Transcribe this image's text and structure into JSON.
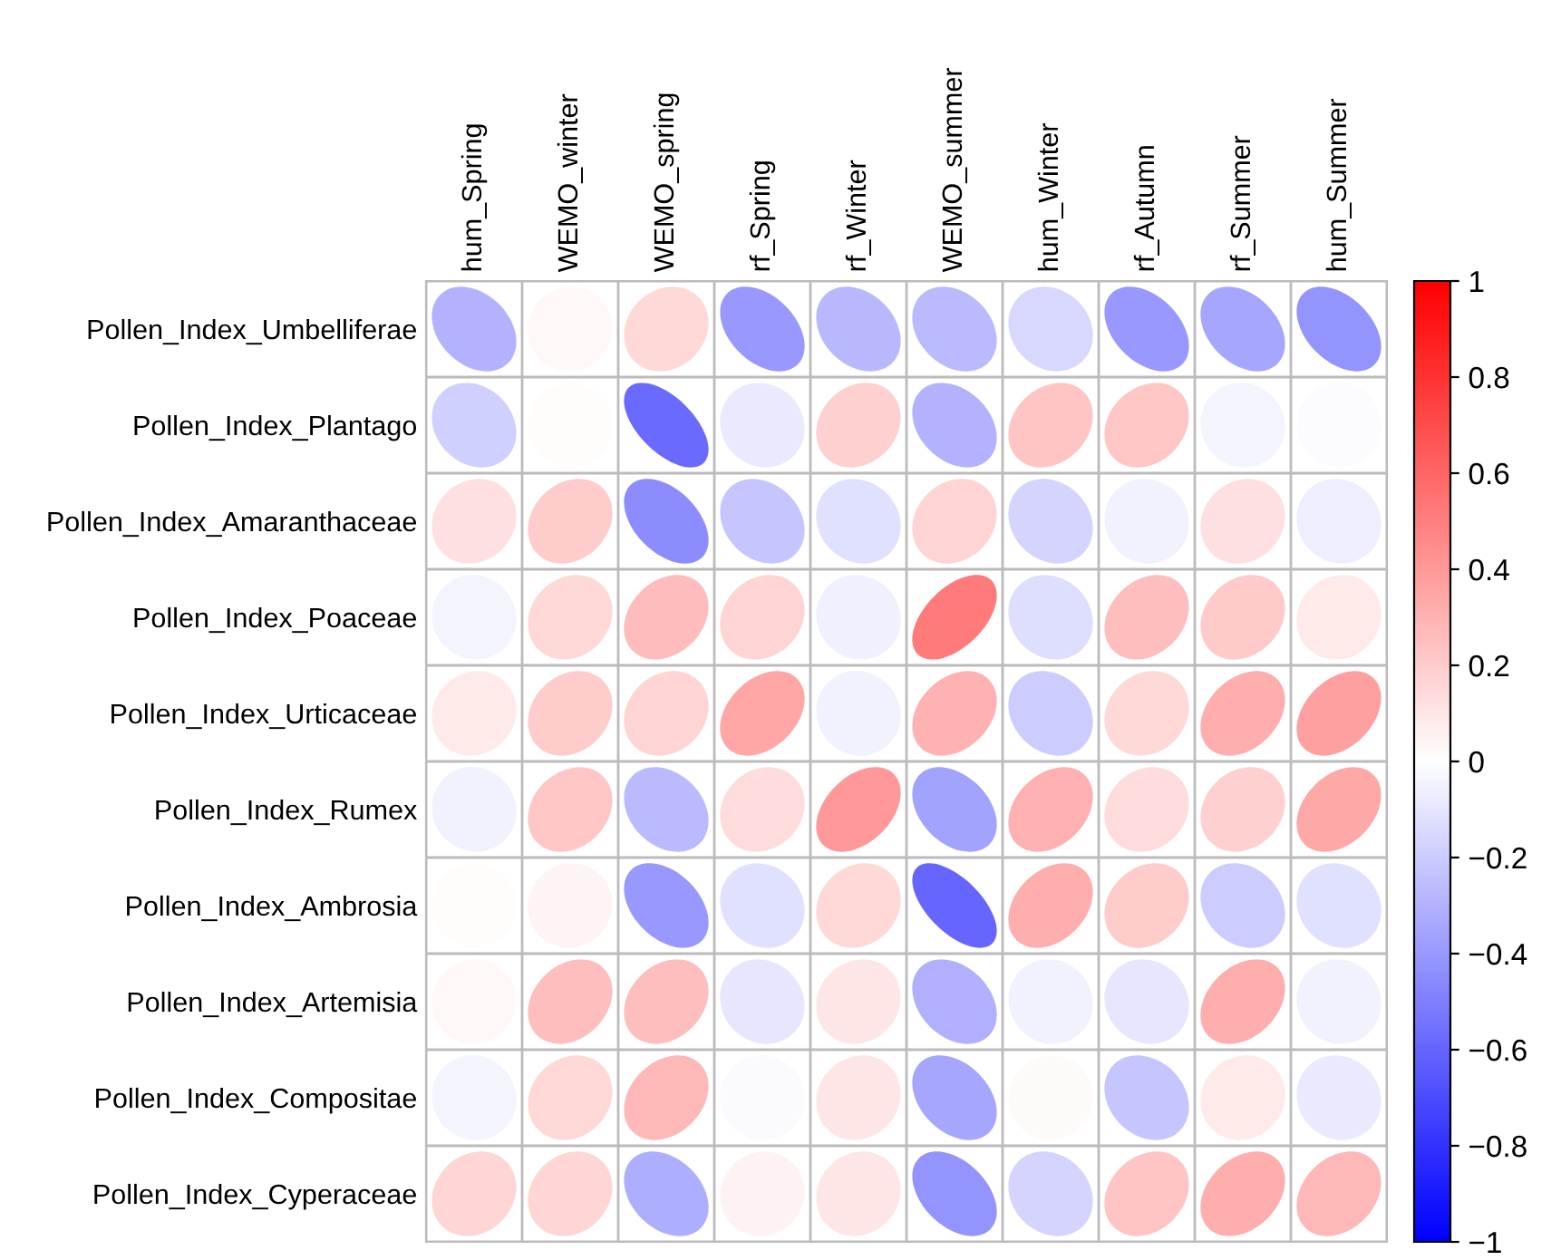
{
  "chart_data": {
    "type": "heatmap",
    "categories": [
      "hum_Spring",
      "WEMO_winter",
      "WEMO_spring",
      "rf_Spring",
      "rf_Winter",
      "WEMO_summer",
      "hum_Winter",
      "rf_Autumn",
      "rf_Summer",
      "hum_Summer"
    ],
    "y_categories": [
      "Pollen_Index_Umbelliferae",
      "Pollen_Index_Plantago",
      "Pollen_Index_Amaranthaceae",
      "Pollen_Index_Poaceae",
      "Pollen_Index_Urticaceae",
      "Pollen_Index_Rumex",
      "Pollen_Index_Ambrosia",
      "Pollen_Index_Artemisia",
      "Pollen_Index_Compositae",
      "Pollen_Index_Cyperaceae"
    ],
    "cells": [
      [
        -0.3,
        0.03,
        0.15,
        -0.4,
        -0.28,
        -0.27,
        -0.15,
        -0.4,
        -0.35,
        -0.42
      ],
      [
        -0.18,
        0.01,
        -0.58,
        -0.08,
        0.18,
        -0.3,
        0.23,
        0.22,
        -0.04,
        -0.01
      ],
      [
        0.12,
        0.2,
        -0.45,
        -0.22,
        -0.12,
        0.17,
        -0.17,
        -0.05,
        0.12,
        -0.07
      ],
      [
        -0.04,
        0.15,
        0.26,
        0.17,
        -0.06,
        0.52,
        -0.13,
        0.25,
        0.21,
        0.08
      ],
      [
        0.08,
        0.2,
        0.17,
        0.35,
        -0.05,
        0.3,
        -0.2,
        0.15,
        0.32,
        0.37
      ],
      [
        -0.05,
        0.22,
        -0.27,
        0.14,
        0.4,
        -0.36,
        0.31,
        0.14,
        0.18,
        0.34
      ],
      [
        0.01,
        0.04,
        -0.4,
        -0.12,
        0.15,
        -0.6,
        0.32,
        0.2,
        -0.2,
        -0.12
      ],
      [
        0.03,
        0.25,
        0.25,
        -0.1,
        0.1,
        -0.31,
        -0.05,
        -0.1,
        0.32,
        -0.05
      ],
      [
        -0.04,
        0.15,
        0.28,
        -0.02,
        0.1,
        -0.35,
        0.02,
        -0.22,
        0.08,
        -0.08
      ],
      [
        0.16,
        0.16,
        -0.32,
        0.05,
        0.1,
        -0.42,
        -0.17,
        0.23,
        0.32,
        0.28
      ]
    ],
    "clim": [
      -1,
      1
    ],
    "cticks": [
      1,
      {
        "value": 0.8,
        "label": "0.8"
      },
      {
        "value": 0.6,
        "label": "0.6"
      },
      {
        "value": 0.4,
        "label": "0.4"
      },
      {
        "value": 0.2,
        "label": "0.2"
      },
      0,
      {
        "value": -0.2,
        "label": "−0.2"
      },
      {
        "value": -0.4,
        "label": "−0.4"
      },
      {
        "value": -0.6,
        "label": "−0.6"
      },
      {
        "value": -0.8,
        "label": "−0.8"
      },
      {
        "value": -1,
        "label": "−1"
      }
    ]
  }
}
